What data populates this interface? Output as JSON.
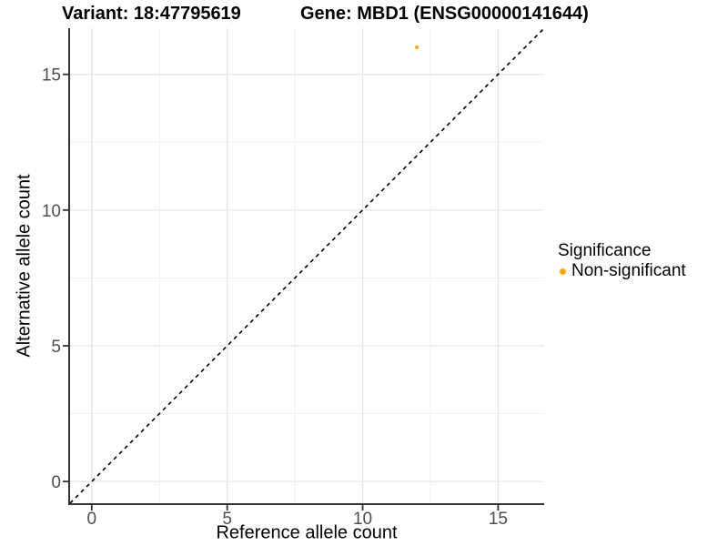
{
  "header": {
    "title_left": "Variant: 18:47795619",
    "title_right": "Gene: MBD1 (ENSG00000141644)"
  },
  "chart_data": {
    "type": "scatter",
    "title": "Variant: 18:47795619 — Gene: MBD1 (ENSG00000141644)",
    "xlabel": "Reference allele count",
    "ylabel": "Alternative allele count",
    "xlim": [
      -0.8,
      16.7
    ],
    "ylim": [
      -0.8,
      16.7
    ],
    "x_ticks": [
      0,
      5,
      10,
      15
    ],
    "y_ticks": [
      0,
      5,
      10,
      15
    ],
    "x_minor_ticks": [
      2.5,
      7.5,
      12.5
    ],
    "y_minor_ticks": [
      2.5,
      7.5,
      12.5
    ],
    "grid": true,
    "points": [
      {
        "x": 12,
        "y": 16,
        "series": "Non-significant"
      }
    ],
    "reference_line": {
      "type": "identity y=x",
      "style": "dashed",
      "color": "#000000"
    },
    "legend": {
      "title": "Significance",
      "position": "right",
      "entries": [
        {
          "label": "Non-significant",
          "color": "#FFA500"
        }
      ]
    },
    "colors": {
      "point": "#FFA500",
      "grid_major": "#E5E5E5",
      "grid_minor": "#F0F0F0",
      "axis_line": "#333333"
    }
  }
}
